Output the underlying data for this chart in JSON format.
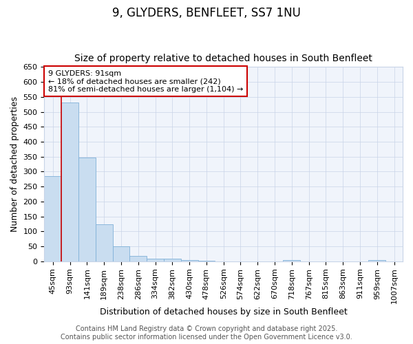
{
  "title": "9, GLYDERS, BENFLEET, SS7 1NU",
  "subtitle": "Size of property relative to detached houses in South Benfleet",
  "xlabel": "Distribution of detached houses by size in South Benfleet",
  "ylabel": "Number of detached properties",
  "categories": [
    "45sqm",
    "93sqm",
    "141sqm",
    "189sqm",
    "238sqm",
    "286sqm",
    "334sqm",
    "382sqm",
    "430sqm",
    "478sqm",
    "526sqm",
    "574sqm",
    "622sqm",
    "670sqm",
    "718sqm",
    "767sqm",
    "815sqm",
    "863sqm",
    "911sqm",
    "959sqm",
    "1007sqm"
  ],
  "values": [
    284,
    530,
    348,
    125,
    50,
    18,
    10,
    10,
    5,
    3,
    0,
    0,
    0,
    0,
    4,
    0,
    0,
    0,
    0,
    4,
    0
  ],
  "bar_color": "#c9ddf0",
  "bar_edge_color": "#7fb0d8",
  "vline_x": 0.5,
  "vline_color": "#cc0000",
  "annotation_text": "9 GLYDERS: 91sqm\n← 18% of detached houses are smaller (242)\n81% of semi-detached houses are larger (1,104) →",
  "annotation_box_color": "#ffffff",
  "annotation_box_edge_color": "#cc0000",
  "ylim": [
    0,
    650
  ],
  "yticks": [
    0,
    50,
    100,
    150,
    200,
    250,
    300,
    350,
    400,
    450,
    500,
    550,
    600,
    650
  ],
  "footer_line1": "Contains HM Land Registry data © Crown copyright and database right 2025.",
  "footer_line2": "Contains public sector information licensed under the Open Government Licence v3.0.",
  "bg_color": "#ffffff",
  "plot_bg_color": "#f0f4fb",
  "grid_color": "#c8d4e8",
  "title_fontsize": 12,
  "subtitle_fontsize": 10,
  "axis_label_fontsize": 9,
  "tick_fontsize": 8,
  "footer_fontsize": 7
}
